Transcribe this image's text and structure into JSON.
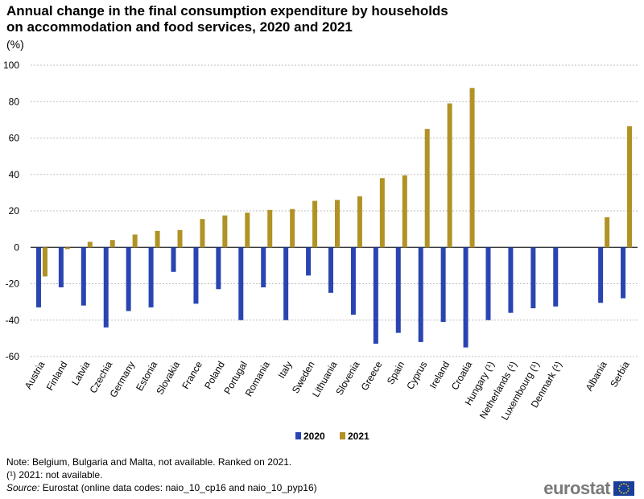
{
  "title_line1": "Annual change in the final consumption expenditure by households",
  "title_line2": "on accommodation and food services, 2020 and 2021",
  "unit": "(%)",
  "notes": {
    "line1": "Note: Belgium, Bulgaria and Malta, not available. Ranked on 2021.",
    "line2": "(¹) 2021: not available.",
    "source_label": "Source:",
    "source_text": " Eurostat (online data codes: naio_10_cp16 and naio_10_pyp16)"
  },
  "logo": {
    "text": "eurostat"
  },
  "colors": {
    "series_2020": "#2a45b1",
    "series_2021": "#b09225",
    "grid": "#bfbfbf"
  },
  "chart_data": {
    "type": "bar",
    "title": "Annual change in the final consumption expenditure by households on accommodation and food services, 2020 and 2021",
    "ylabel": "(%)",
    "xlabel": "",
    "ylim": [
      -60,
      100
    ],
    "yticks": [
      -60,
      -40,
      -20,
      0,
      20,
      40,
      60,
      80,
      100
    ],
    "grid": true,
    "legend_position": "bottom-center",
    "categories": [
      "Austria",
      "Finland",
      "Latvia",
      "Czechia",
      "Germany",
      "Estonia",
      "Slovakia",
      "France",
      "Poland",
      "Portugal",
      "Romania",
      "Italy",
      "Sweden",
      "Lithuania",
      "Slovenia",
      "Greece",
      "Spain",
      "Cyprus",
      "Ireland",
      "Croatia",
      "Hungary (¹)",
      "Netherlands (¹)",
      "Luxembourg (¹)",
      "Denmark (¹)",
      "",
      "Albania",
      "Serbia"
    ],
    "series": [
      {
        "name": "2020",
        "values": [
          -33,
          -22,
          -32,
          -44,
          -35,
          -33,
          -13.5,
          -31,
          -23,
          -40,
          -22,
          -40,
          -15.5,
          -25,
          -37,
          -53,
          -47,
          -52,
          -41,
          -55,
          -40,
          -36,
          -33.5,
          -32.5,
          null,
          -30.5,
          -28
        ]
      },
      {
        "name": "2021",
        "values": [
          -16,
          -1,
          3,
          4,
          7,
          9,
          9.5,
          15.5,
          17.5,
          19,
          20.5,
          21,
          25.5,
          26,
          28,
          38,
          39.5,
          65,
          79,
          87.5,
          null,
          null,
          null,
          null,
          null,
          16.5,
          66.5
        ]
      }
    ]
  }
}
